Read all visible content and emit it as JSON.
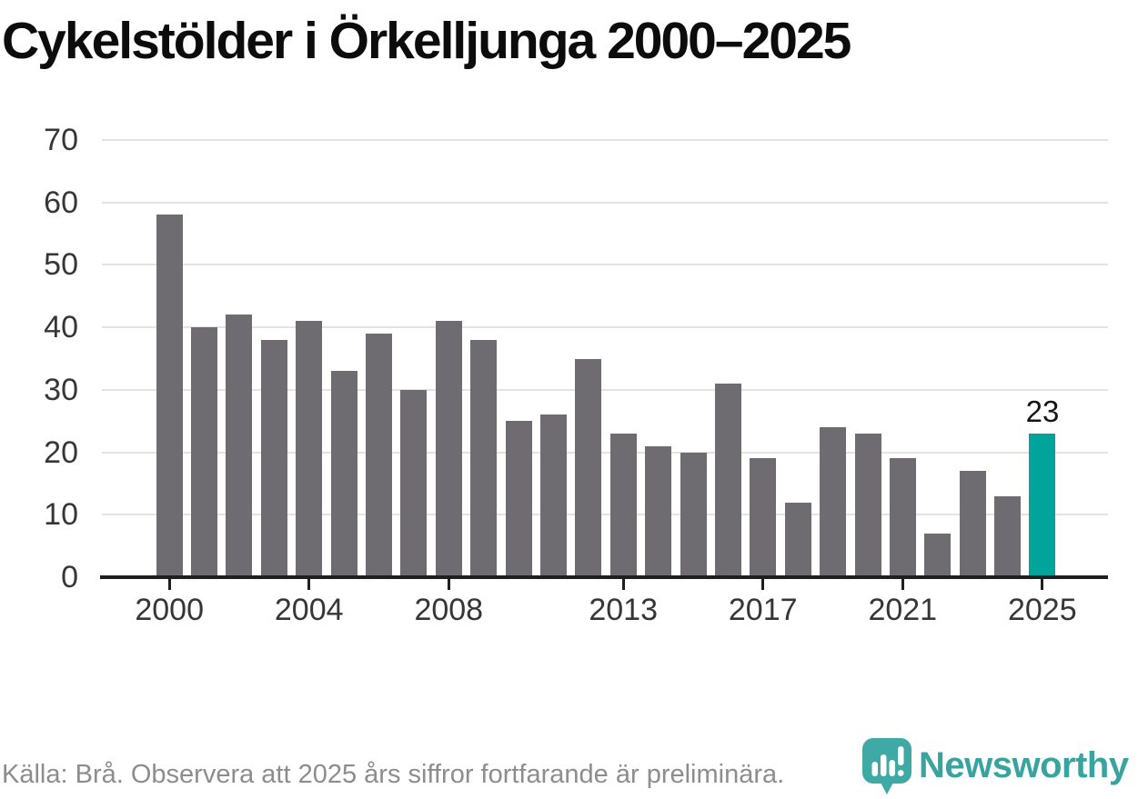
{
  "title": "Cykelstölder i Örkelljunga 2000–2025",
  "footer": {
    "source_text": "Källa: Brå. Observera att 2025 års siffror fortfarande är preliminära.",
    "logo_text": "Newsworthy"
  },
  "icons": {
    "logo": "newsworthy-speech-bubble-bar-chart-icon"
  },
  "colors": {
    "bar": "#6e6c70",
    "highlight": "#00a49a",
    "gridline": "#e3e3e3",
    "axis": "#1f1f1f",
    "tick_label": "#363636",
    "title": "#0c0c0c",
    "footer_text": "#8d8d8d",
    "logo": "#3fa9a5"
  },
  "chart_data": {
    "type": "bar",
    "title": "Cykelstölder i Örkelljunga 2000–2025",
    "categories": [
      2000,
      2001,
      2002,
      2003,
      2004,
      2005,
      2006,
      2007,
      2008,
      2009,
      2010,
      2011,
      2012,
      2013,
      2014,
      2015,
      2016,
      2017,
      2018,
      2019,
      2020,
      2021,
      2022,
      2023,
      2024,
      2025
    ],
    "values": [
      58,
      40,
      42,
      38,
      41,
      33,
      39,
      30,
      41,
      38,
      25,
      26,
      35,
      23,
      21,
      20,
      31,
      19,
      12,
      24,
      23,
      19,
      7,
      17,
      13,
      23
    ],
    "highlight_index": 25,
    "highlight_label": "23",
    "x_ticks": [
      2000,
      2004,
      2008,
      2013,
      2017,
      2021,
      2025
    ],
    "y_ticks": [
      0,
      10,
      20,
      30,
      40,
      50,
      60,
      70
    ],
    "ylim": [
      0,
      70
    ],
    "xlabel": "",
    "ylabel": "",
    "grid": "horizontal",
    "legend": "none",
    "bar_color": "#6e6c70",
    "highlight_color": "#00a49a",
    "annotation": "Only the 2025 bar is labeled with its value (23) and colored teal; all other bars are gray."
  }
}
